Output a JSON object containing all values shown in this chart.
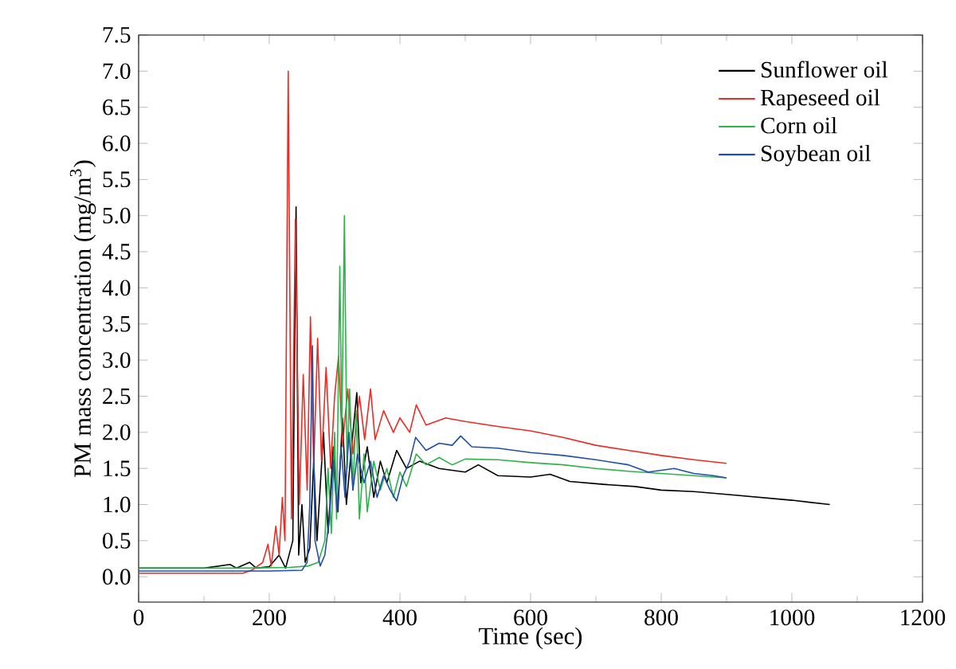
{
  "chart_data": {
    "type": "line",
    "xlabel": "Time (sec)",
    "ylabel": "PM mass concentration (mg/m$^{3}$)",
    "xlim": [
      0,
      1200
    ],
    "ylim": [
      -0.35,
      7.5
    ],
    "xticks": [
      0,
      200,
      400,
      600,
      800,
      1000,
      1200
    ],
    "yticks": [
      {
        "value": 0,
        "label": "0.0"
      },
      {
        "value": 0.5,
        "label": "0.5"
      },
      {
        "value": 1,
        "label": "1.0"
      },
      {
        "value": 1.5,
        "label": "1.5"
      },
      {
        "value": 2,
        "label": "2.0"
      },
      {
        "value": 2.5,
        "label": "2.5"
      },
      {
        "value": 3,
        "label": "3.0"
      },
      {
        "value": 3.5,
        "label": "3.5"
      },
      {
        "value": 4,
        "label": "4.0"
      },
      {
        "value": 4.5,
        "label": "4.5"
      },
      {
        "value": 5,
        "label": "5.0"
      },
      {
        "value": 5.5,
        "label": "5.5"
      },
      {
        "value": 6,
        "label": "6.0"
      },
      {
        "value": 6.5,
        "label": "6.5"
      },
      {
        "value": 7,
        "label": "7.0"
      },
      {
        "value": 7.5,
        "label": "7.5"
      }
    ],
    "legend": "top right",
    "grid": false,
    "series": [
      {
        "name": "Sunflower oil",
        "color": "#000000",
        "x": [
          0,
          100,
          140,
          150,
          170,
          180,
          200,
          215,
          225,
          236,
          241,
          245,
          250,
          255,
          262,
          268,
          273,
          283,
          290,
          298,
          305,
          312,
          318,
          326,
          334,
          340,
          350,
          360,
          370,
          380,
          395,
          410,
          430,
          460,
          500,
          520,
          550,
          600,
          630,
          660,
          711,
          760,
          800,
          850,
          900,
          950,
          1000,
          1058
        ],
        "values": [
          0.12,
          0.12,
          0.17,
          0.12,
          0.2,
          0.12,
          0.14,
          0.3,
          0.12,
          0.5,
          5.12,
          0.3,
          1.0,
          0.2,
          0.4,
          1.6,
          0.5,
          2.0,
          0.6,
          1.8,
          0.9,
          2.2,
          1.0,
          1.8,
          2.55,
          1.3,
          1.8,
          1.1,
          1.6,
          1.3,
          1.75,
          1.5,
          1.6,
          1.5,
          1.45,
          1.55,
          1.4,
          1.38,
          1.42,
          1.32,
          1.28,
          1.25,
          1.2,
          1.18,
          1.14,
          1.1,
          1.06,
          1.0
        ]
      },
      {
        "name": "Rapeseed oil",
        "color": "#ee2a24",
        "x": [
          0,
          100,
          160,
          175,
          190,
          198,
          203,
          210,
          215,
          220,
          224,
          229,
          234,
          240,
          246,
          252,
          258,
          263,
          268,
          274,
          280,
          287,
          294,
          300,
          306,
          312,
          320,
          328,
          338,
          346,
          355,
          362,
          375,
          390,
          400,
          415,
          425,
          440,
          470,
          500,
          550,
          600,
          650,
          700,
          750,
          800,
          850,
          900
        ],
        "values": [
          0.05,
          0.05,
          0.05,
          0.1,
          0.2,
          0.45,
          0.15,
          0.7,
          0.3,
          1.1,
          0.5,
          7.0,
          0.8,
          4.95,
          1.0,
          2.8,
          1.2,
          3.6,
          1.5,
          3.3,
          1.6,
          2.9,
          1.5,
          2.5,
          3.05,
          1.8,
          2.6,
          1.7,
          2.5,
          1.9,
          2.6,
          1.9,
          2.3,
          2.0,
          2.2,
          2.0,
          2.38,
          2.1,
          2.2,
          2.15,
          2.08,
          2.02,
          1.93,
          1.82,
          1.75,
          1.68,
          1.62,
          1.57
        ]
      },
      {
        "name": "Corn oil",
        "color": "#2eb34a",
        "x": [
          0,
          150,
          230,
          260,
          275,
          285,
          290,
          295,
          300,
          303,
          308,
          311,
          315,
          319,
          323,
          328,
          333,
          338,
          345,
          350,
          360,
          370,
          380,
          390,
          400,
          410,
          425,
          440,
          460,
          480,
          500,
          550,
          600,
          650,
          700,
          750,
          800,
          850,
          900
        ],
        "values": [
          0.12,
          0.12,
          0.13,
          0.15,
          0.2,
          0.5,
          1.5,
          0.6,
          2.0,
          0.8,
          4.3,
          2.0,
          5.0,
          1.5,
          2.6,
          1.2,
          2.3,
          0.8,
          1.7,
          0.9,
          1.6,
          1.2,
          1.5,
          1.1,
          1.45,
          1.25,
          1.7,
          1.55,
          1.65,
          1.55,
          1.63,
          1.62,
          1.58,
          1.55,
          1.5,
          1.46,
          1.43,
          1.4,
          1.37
        ]
      },
      {
        "name": "Soybean oil",
        "color": "#1f4fa8",
        "x": [
          0,
          200,
          250,
          258,
          262,
          266,
          270,
          278,
          285,
          292,
          298,
          304,
          310,
          316,
          322,
          328,
          335,
          345,
          355,
          365,
          375,
          385,
          395,
          405,
          415,
          424,
          440,
          460,
          480,
          493,
          510,
          550,
          600,
          650,
          700,
          750,
          780,
          820,
          850,
          880,
          900
        ],
        "values": [
          0.08,
          0.08,
          0.09,
          0.2,
          1.0,
          3.2,
          0.5,
          0.15,
          0.3,
          0.8,
          1.6,
          0.9,
          1.8,
          1.1,
          2.0,
          1.2,
          1.7,
          1.3,
          1.6,
          1.1,
          1.4,
          1.2,
          1.05,
          1.4,
          1.6,
          1.93,
          1.75,
          1.85,
          1.82,
          1.95,
          1.8,
          1.78,
          1.72,
          1.68,
          1.62,
          1.55,
          1.45,
          1.5,
          1.43,
          1.4,
          1.37
        ]
      }
    ]
  }
}
